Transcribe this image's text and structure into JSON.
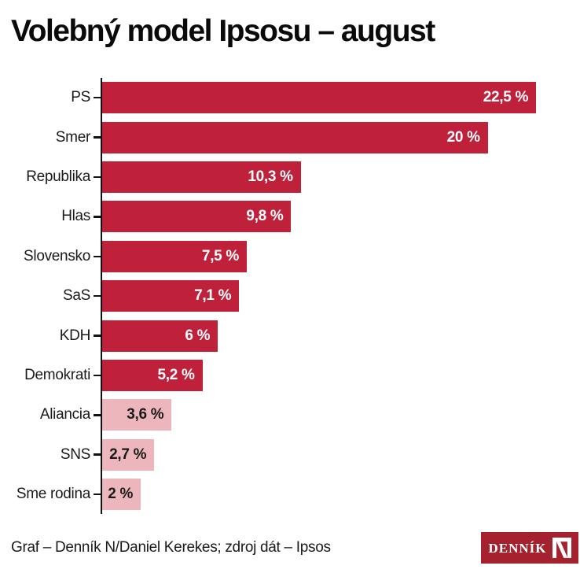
{
  "title": "Volebný model Ipsosu – august",
  "footer": {
    "credit": "Graf – Denník N/Daniel Kerekes; zdroj dát – Ipsos"
  },
  "logo": {
    "text": "DENNÍK",
    "bg_color": "#a5212e"
  },
  "colors": {
    "bar_strong": "#c0213a",
    "bar_muted": "#edb6bd",
    "value_on_strong": "#ffffff",
    "value_on_muted": "#1a1a1a",
    "axis": "#111111"
  },
  "chart_data": {
    "type": "bar",
    "orientation": "horizontal",
    "title": "Volebný model Ipsosu – august",
    "xlabel": "",
    "ylabel": "",
    "categories": [
      "PS",
      "Smer",
      "Republika",
      "Hlas",
      "Slovensko",
      "SaS",
      "KDH",
      "Demokrati",
      "Aliancia",
      "SNS",
      "Sme rodina"
    ],
    "values": [
      22.5,
      20,
      10.3,
      9.8,
      7.5,
      7.1,
      6,
      5.2,
      3.6,
      2.7,
      2
    ],
    "value_labels": [
      "22,5 %",
      "20 %",
      "10,3 %",
      "9,8 %",
      "7,5 %",
      "7,1 %",
      "6 %",
      "5,2 %",
      "3,6 %",
      "2,7 %",
      "2 %"
    ],
    "muted_from_index": 8,
    "xlim": [
      0,
      24.78
    ],
    "grid": false,
    "legend": false,
    "bar_colors_note": "parties below 5% threshold drawn in muted pink"
  }
}
